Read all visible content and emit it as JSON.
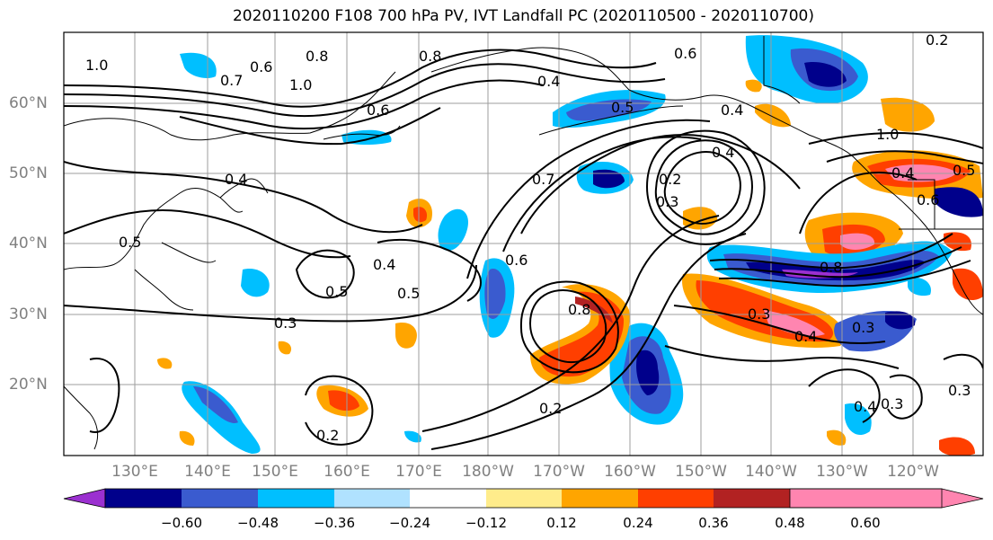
{
  "title": "2020110200 F108 700 hPa PV, IVT Landfall PC (2020110500 - 2020110700)",
  "lat_labels": [
    "20°N",
    "30°N",
    "40°N",
    "50°N",
    "60°N"
  ],
  "lon_labels": [
    "130°E",
    "140°E",
    "150°E",
    "160°E",
    "170°E",
    "180°W",
    "170°W",
    "160°W",
    "150°W",
    "140°W",
    "130°W",
    "120°W"
  ],
  "contour_labels": [
    "1.0",
    "0.6",
    "0.8",
    "1.0",
    "0.8",
    "0.7",
    "0.6",
    "0.6",
    "0.4",
    "0.5",
    "0.4",
    "0.5",
    "0.3",
    "0.4",
    "0.5",
    "0.5",
    "0.7",
    "0.6",
    "0.8",
    "0.2",
    "0.2",
    "0.3",
    "0.4",
    "0.8",
    "0.3",
    "0.4",
    "0.2",
    "0.3",
    "0.4",
    "1.0",
    "0.4",
    "0.5",
    "0.6",
    "0.4",
    "0.3",
    "0.3",
    "0.2"
  ],
  "colorbar": {
    "ticks": [
      "−0.60",
      "−0.48",
      "−0.36",
      "−0.24",
      "−0.12",
      "0.12",
      "0.24",
      "0.36",
      "0.48",
      "0.60"
    ],
    "colors": [
      "#9b30d0",
      "#00008b",
      "#3a5bcf",
      "#00bfff",
      "#b0e2ff",
      "#ffffff",
      "#ffec8b",
      "#ffa500",
      "#ff3f00",
      "#b22222",
      "#ff85b0"
    ]
  }
}
